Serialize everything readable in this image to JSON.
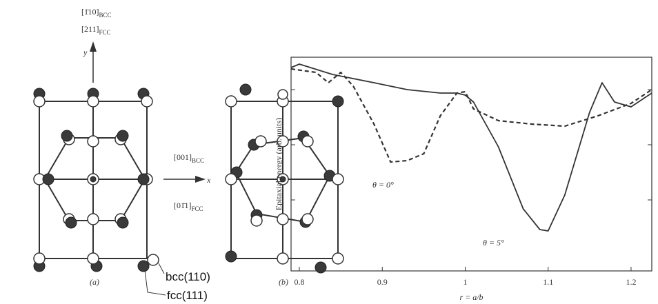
{
  "diagram": {
    "y_dir": {
      "bcc": {
        "text": "[1̄10]",
        "sub": "BCC"
      },
      "fcc": {
        "text": "[211]",
        "sub": "FCC"
      }
    },
    "x_dir": {
      "bcc": {
        "text": "[001]",
        "sub": "BCC"
      },
      "fcc": {
        "text": "[01̄1]",
        "sub": "FCC"
      }
    },
    "y_axis": "y",
    "x_axis": "x",
    "panel_a": "(a)",
    "panel_b": "(b)",
    "legend": {
      "open": "bcc(110)",
      "filled": "fcc(111)"
    }
  },
  "chart_data": {
    "type": "line",
    "ylabel": "Epitaxial energy (arb. units)",
    "xlabel": "r = a/b",
    "xlim": [
      0.79,
      1.225
    ],
    "xticks": [
      0.8,
      0.9,
      1.0,
      1.1,
      1.2
    ],
    "ylim": [
      0,
      310
    ],
    "yticks": [
      103,
      183,
      263
    ],
    "series": [
      {
        "dash": false,
        "color": "#333333",
        "x": [
          0.79,
          0.8,
          0.84,
          0.89,
          0.93,
          0.97,
          0.99,
          1.0,
          1.01,
          1.04,
          1.07,
          1.09,
          1.1,
          1.12,
          1.15,
          1.165,
          1.18,
          1.2,
          1.225
        ],
        "values": [
          295,
          300,
          285,
          273,
          263,
          258,
          258,
          255,
          245,
          180,
          90,
          60,
          58,
          110,
          230,
          273,
          245,
          238,
          258
        ]
      },
      {
        "dash": true,
        "color": "#333333",
        "x": [
          0.79,
          0.82,
          0.835,
          0.85,
          0.865,
          0.89,
          0.91,
          0.93,
          0.95,
          0.97,
          0.99,
          1.0,
          1.01,
          1.04,
          1.08,
          1.12,
          1.16,
          1.2,
          1.225
        ],
        "values": [
          293,
          288,
          273,
          288,
          268,
          213,
          158,
          160,
          170,
          225,
          258,
          260,
          235,
          218,
          213,
          210,
          225,
          243,
          263
        ]
      }
    ],
    "annotations": [
      "θ = 0°",
      "θ = 5°"
    ]
  }
}
